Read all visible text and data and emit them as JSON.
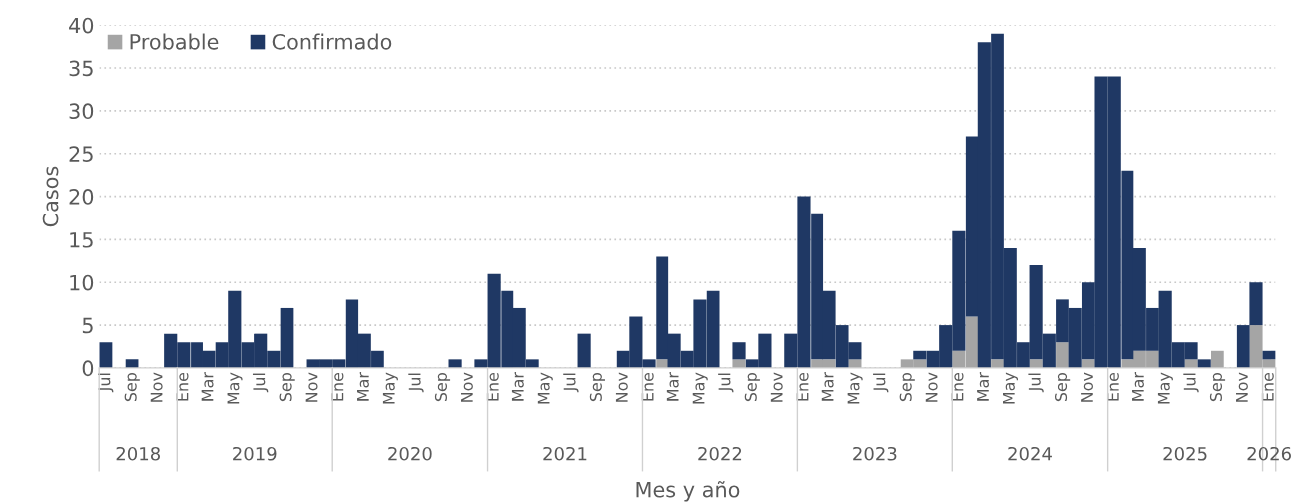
{
  "chart_data": {
    "type": "bar",
    "stacked": true,
    "xlabel": "Mes y año",
    "ylabel": "Casos",
    "x": [
      "2018-07",
      "2018-08",
      "2018-09",
      "2018-10",
      "2018-11",
      "2018-12",
      "2019-01",
      "2019-02",
      "2019-03",
      "2019-04",
      "2019-05",
      "2019-06",
      "2019-07",
      "2019-08",
      "2019-09",
      "2019-10",
      "2019-11",
      "2019-12",
      "2020-01",
      "2020-02",
      "2020-03",
      "2020-04",
      "2020-05",
      "2020-06",
      "2020-07",
      "2020-08",
      "2020-09",
      "2020-10",
      "2020-11",
      "2020-12",
      "2021-01",
      "2021-02",
      "2021-03",
      "2021-04",
      "2021-05",
      "2021-06",
      "2021-07",
      "2021-08",
      "2021-09",
      "2021-10",
      "2021-11",
      "2021-12",
      "2022-01",
      "2022-02",
      "2022-03",
      "2022-04",
      "2022-05",
      "2022-06",
      "2022-07",
      "2022-08",
      "2022-09",
      "2022-10",
      "2022-11",
      "2022-12",
      "2023-01",
      "2023-02",
      "2023-03",
      "2023-04",
      "2023-05",
      "2023-06",
      "2023-07",
      "2023-08",
      "2023-09",
      "2023-10",
      "2023-11",
      "2023-12",
      "2024-01",
      "2024-02",
      "2024-03",
      "2024-04",
      "2024-05",
      "2024-06",
      "2024-07",
      "2024-08",
      "2024-09",
      "2024-10",
      "2024-11",
      "2024-12",
      "2025-01",
      "2025-02",
      "2025-03",
      "2025-04",
      "2025-05",
      "2025-06",
      "2025-07",
      "2025-08",
      "2025-09",
      "2025-10",
      "2025-11",
      "2025-12",
      "2026-01"
    ],
    "series": [
      {
        "name": "Probable",
        "color": "#a5a5a5",
        "values": [
          0,
          0,
          0,
          0,
          0,
          0,
          0,
          0,
          0,
          0,
          0,
          0,
          0,
          0,
          0,
          0,
          0,
          0,
          0,
          0,
          0,
          0,
          0,
          0,
          0,
          0,
          0,
          0,
          0,
          0,
          0,
          0,
          0,
          0,
          0,
          0,
          0,
          0,
          0,
          0,
          0,
          0,
          0,
          1,
          0,
          0,
          0,
          0,
          0,
          1,
          0,
          0,
          0,
          0,
          0,
          1,
          1,
          0,
          1,
          0,
          0,
          0,
          1,
          1,
          0,
          0,
          2,
          6,
          0,
          1,
          0,
          0,
          1,
          0,
          3,
          0,
          1,
          0,
          0,
          1,
          2,
          2,
          0,
          0,
          1,
          0,
          2,
          0,
          0,
          5,
          1
        ]
      },
      {
        "name": "Confirmado",
        "color": "#1f3864",
        "values": [
          3,
          0,
          1,
          0,
          0,
          4,
          3,
          3,
          2,
          3,
          9,
          3,
          4,
          2,
          7,
          0,
          1,
          1,
          1,
          8,
          4,
          2,
          0,
          0,
          0,
          0,
          0,
          1,
          0,
          1,
          11,
          9,
          7,
          1,
          0,
          0,
          0,
          4,
          0,
          0,
          2,
          6,
          1,
          12,
          4,
          2,
          8,
          9,
          0,
          2,
          1,
          4,
          0,
          4,
          20,
          17,
          8,
          5,
          2,
          0,
          0,
          0,
          0,
          1,
          2,
          5,
          14,
          21,
          38,
          38,
          14,
          3,
          11,
          4,
          5,
          7,
          9,
          34,
          34,
          22,
          12,
          5,
          9,
          3,
          2,
          1,
          0,
          0,
          5,
          5,
          1
        ]
      }
    ],
    "xlim": [
      "2018-06-16",
      "2026-01-16"
    ],
    "xticks": [
      {
        "value": "2018-07",
        "label": "Jul"
      },
      {
        "value": "2018-09",
        "label": "Sep"
      },
      {
        "value": "2018-11",
        "label": "Nov"
      },
      {
        "value": "2019-01",
        "label": "Ene"
      },
      {
        "value": "2019-03",
        "label": "Mar"
      },
      {
        "value": "2019-05",
        "label": "May"
      },
      {
        "value": "2019-07",
        "label": "Jul"
      },
      {
        "value": "2019-09",
        "label": "Sep"
      },
      {
        "value": "2019-11",
        "label": "Nov"
      },
      {
        "value": "2020-01",
        "label": "Ene"
      },
      {
        "value": "2020-03",
        "label": "Mar"
      },
      {
        "value": "2020-05",
        "label": "May"
      },
      {
        "value": "2020-07",
        "label": "Jul"
      },
      {
        "value": "2020-09",
        "label": "Sep"
      },
      {
        "value": "2020-11",
        "label": "Nov"
      },
      {
        "value": "2021-01",
        "label": "Ene"
      },
      {
        "value": "2021-03",
        "label": "Mar"
      },
      {
        "value": "2021-05",
        "label": "May"
      },
      {
        "value": "2021-07",
        "label": "Jul"
      },
      {
        "value": "2021-09",
        "label": "Sep"
      },
      {
        "value": "2021-11",
        "label": "Nov"
      },
      {
        "value": "2022-01",
        "label": "Ene"
      },
      {
        "value": "2022-03",
        "label": "Mar"
      },
      {
        "value": "2022-05",
        "label": "May"
      },
      {
        "value": "2022-07",
        "label": "Jul"
      },
      {
        "value": "2022-09",
        "label": "Sep"
      },
      {
        "value": "2022-11",
        "label": "Nov"
      },
      {
        "value": "2023-01",
        "label": "Ene"
      },
      {
        "value": "2023-03",
        "label": "Mar"
      },
      {
        "value": "2023-05",
        "label": "May"
      },
      {
        "value": "2023-07",
        "label": "Jul"
      },
      {
        "value": "2023-09",
        "label": "Sep"
      },
      {
        "value": "2023-11",
        "label": "Nov"
      },
      {
        "value": "2024-01",
        "label": "Ene"
      },
      {
        "value": "2024-03",
        "label": "Mar"
      },
      {
        "value": "2024-05",
        "label": "May"
      },
      {
        "value": "2024-07",
        "label": "Jul"
      },
      {
        "value": "2024-09",
        "label": "Sep"
      },
      {
        "value": "2024-11",
        "label": "Nov"
      },
      {
        "value": "2025-01",
        "label": "Ene"
      },
      {
        "value": "2025-03",
        "label": "Mar"
      },
      {
        "value": "2025-05",
        "label": "May"
      },
      {
        "value": "2025-07",
        "label": "Jul"
      },
      {
        "value": "2025-09",
        "label": "Sep"
      },
      {
        "value": "2025-11",
        "label": "Nov"
      },
      {
        "value": "2026-01",
        "label": "Ene"
      }
    ],
    "ylim": [
      0,
      40
    ],
    "yticks": [
      0,
      5,
      10,
      15,
      20,
      25,
      30,
      35,
      40
    ],
    "grid": "y",
    "legend": "top left",
    "annotations": [
      "2018",
      "2019",
      "2020",
      "2021",
      "2022",
      "2023",
      "2024",
      "2025",
      "2026"
    ]
  }
}
